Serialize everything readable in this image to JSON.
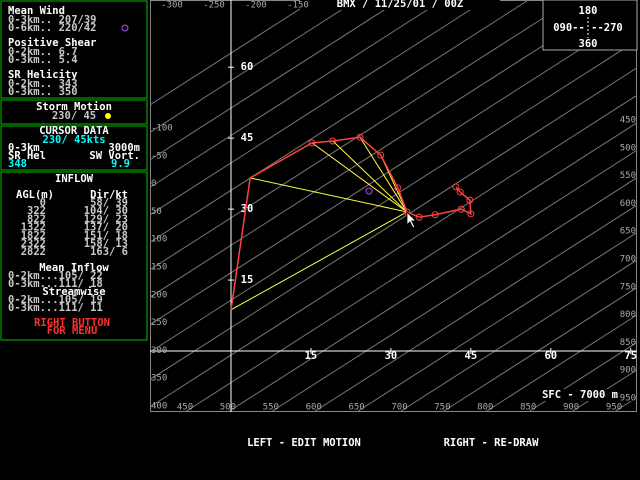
{
  "header": {
    "title": "BMX / 11/25/01 / 00Z",
    "compass": {
      "top": "180",
      "middle": "090-- --270",
      "bottom": "360"
    },
    "level": "SFC - 7000 m"
  },
  "panel": {
    "mean_wind": {
      "title": "Mean Wind",
      "rows": [
        "0-3km.. 207/39",
        "0-6km.. 220/42"
      ]
    },
    "shear": {
      "title": "Positive Shear",
      "rows": [
        "0-2km.. 6.7",
        "0-3km.. 5.4"
      ]
    },
    "helicity": {
      "title": "SR Helicity",
      "rows": [
        "0-2km.. 343",
        "0-3km.. 350"
      ]
    },
    "storm_motion": {
      "title": "Storm Motion",
      "value": "230/ 45"
    },
    "cursor": {
      "title": "CURSOR DATA",
      "wind": "230/ 45kts",
      "layer": "0-3km",
      "height": "3000m",
      "hel_label": "SR Hel",
      "vort_label": "SW Vort.",
      "hel": "348",
      "vort": "9.9"
    },
    "inflow": {
      "title": "INFLOW",
      "head_agl": "AGL(m)",
      "head_dir": "Dir/kt",
      "rows": [
        [
          "0",
          "58/ 39"
        ],
        [
          "322",
          "104/ 30"
        ],
        [
          "822",
          "129/ 23"
        ],
        [
          "1322",
          "137/ 20"
        ],
        [
          "1822",
          "151/ 18"
        ],
        [
          "2322",
          "158/ 13"
        ],
        [
          "2822",
          "163/  6"
        ]
      ],
      "mean_title": "Mean Inflow",
      "mean_rows": [
        "0-2km...105/ 22",
        "0-3km...111/ 18"
      ],
      "stream_title": "Streamwise",
      "stream_rows": [
        "0-2km...105/ 19",
        "0-3km...111/ 11"
      ],
      "menu": [
        "RIGHT BUTTON",
        "FOR MENU"
      ]
    }
  },
  "hodograph": {
    "x_labels": [
      15,
      30,
      45,
      60,
      75
    ],
    "y_labels": [
      15,
      30,
      45,
      60
    ],
    "u": [
      0,
      3.6,
      15.2,
      19.1,
      24.2,
      28.1,
      31.3,
      33.0,
      35.3,
      38.3,
      43.2,
      45.0,
      44.8,
      43.0,
      42.2
    ],
    "v": [
      8.7,
      36.6,
      44.0,
      44.4,
      45.2,
      41.4,
      34.5,
      29.4,
      28.3,
      28.8,
      30.0,
      29.0,
      31.9,
      33.6,
      34.7
    ],
    "storm_motion": [
      33.0,
      29.4
    ],
    "mean_wind": [
      25.9,
      33.8
    ],
    "diag_top": [
      "-300",
      "-250",
      "-200",
      "-150"
    ],
    "diag_left": [
      "-100",
      "-50",
      "0",
      "50",
      "100",
      "150",
      "200",
      "250",
      "300",
      "350",
      "400"
    ],
    "diag_right": [
      "450",
      "500",
      "550",
      "600",
      "650",
      "700",
      "750",
      "800",
      "850",
      "900",
      "950"
    ],
    "diag_bottom": [
      "450",
      "500",
      "550",
      "600",
      "650",
      "700",
      "750",
      "800",
      "850",
      "900",
      "950"
    ]
  },
  "footer": {
    "left": "LEFT - EDIT MOTION",
    "right": "RIGHT - RE-DRAW"
  }
}
